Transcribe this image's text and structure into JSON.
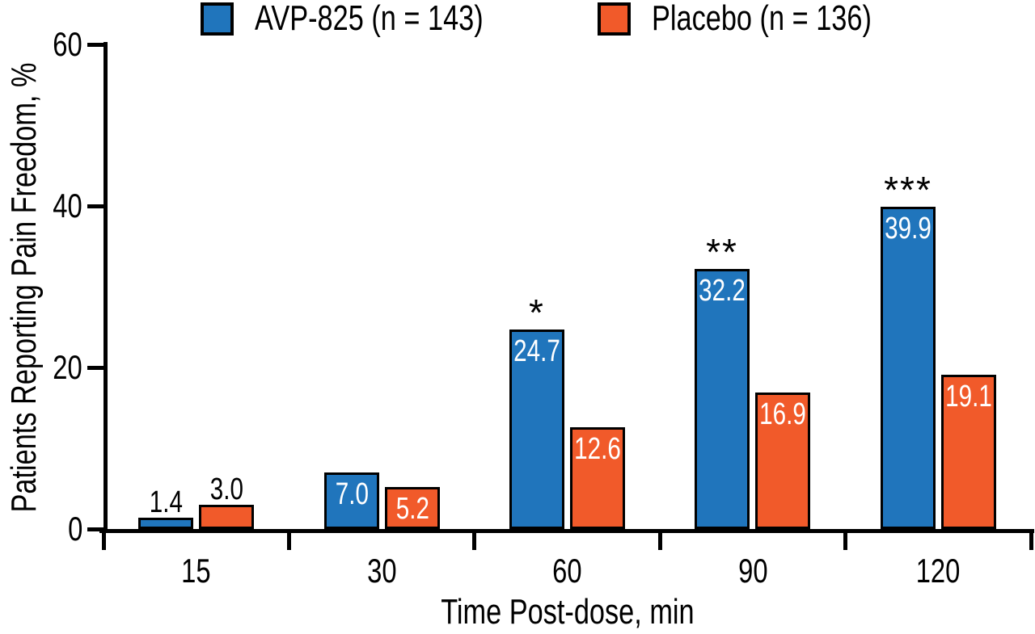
{
  "colors": {
    "avp": "#2075BC",
    "placebo": "#F15A2A",
    "axis": "#000000",
    "value_label_inside": "#ffffff",
    "value_label_above": "#000000"
  },
  "legend": {
    "items": [
      {
        "label": "AVP-825 (n = 143)",
        "color_key": "avp"
      },
      {
        "label": "Placebo (n = 136)",
        "color_key": "placebo"
      }
    ]
  },
  "chart_data": {
    "type": "bar",
    "title": "",
    "xlabel": "Time Post-dose, min",
    "ylabel": "Patients Reporting Pain Freedom, %",
    "categories": [
      "15",
      "30",
      "60",
      "90",
      "120"
    ],
    "series": [
      {
        "name": "AVP-825 (n = 143)",
        "color_key": "avp",
        "values": [
          1.4,
          7.0,
          24.7,
          32.2,
          39.9
        ],
        "labels": [
          "1.4",
          "7.0",
          "24.7",
          "32.2",
          "39.9"
        ],
        "label_placement": [
          "above",
          "inside",
          "inside",
          "inside",
          "inside"
        ],
        "significance": [
          "",
          "",
          "*",
          "**",
          "***"
        ]
      },
      {
        "name": "Placebo (n = 136)",
        "color_key": "placebo",
        "values": [
          3.0,
          5.2,
          12.6,
          16.9,
          19.1
        ],
        "labels": [
          "3.0",
          "5.2",
          "12.6",
          "16.9",
          "19.1"
        ],
        "label_placement": [
          "above",
          "inside",
          "inside",
          "inside",
          "inside"
        ],
        "significance": [
          "",
          "",
          "",
          "",
          ""
        ]
      }
    ],
    "ylim": [
      0,
      60
    ],
    "yticks": [
      "0",
      "20",
      "40",
      "60"
    ],
    "legend_position": "top",
    "grid": false
  }
}
